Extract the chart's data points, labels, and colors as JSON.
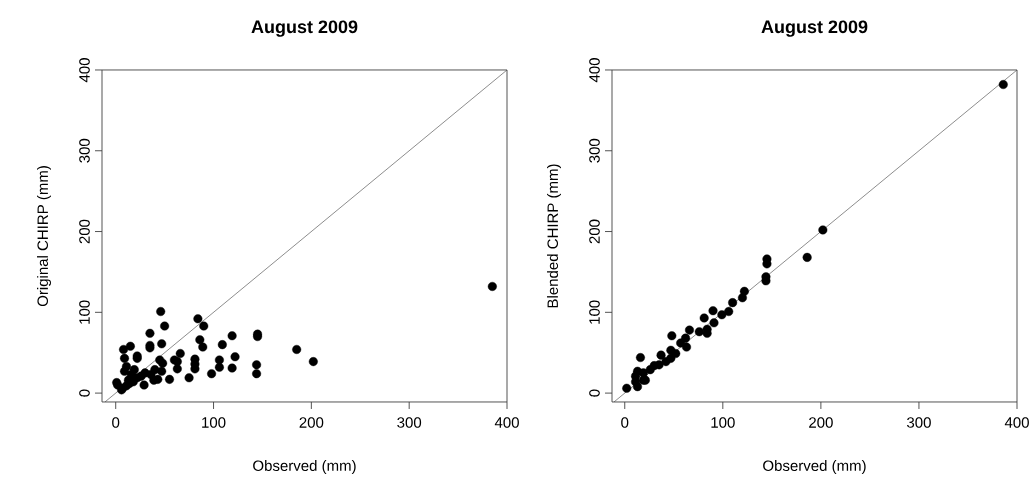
{
  "chart_data": [
    {
      "type": "scatter",
      "title": "August 2009",
      "xlabel": "Observed (mm)",
      "ylabel": "Original CHIRP (mm)",
      "xlim": [
        -14,
        400
      ],
      "ylim": [
        -11,
        400
      ],
      "xticks": [
        0,
        100,
        200,
        300,
        400
      ],
      "yticks": [
        0,
        100,
        200,
        300,
        400
      ],
      "series": [
        {
          "marker": "circle",
          "color": "#000000",
          "x": [
            385,
            46,
            84,
            50,
            90,
            35,
            119,
            145,
            145,
            86,
            47,
            109,
            35,
            35,
            15,
            89,
            8,
            185,
            22,
            122,
            66,
            60,
            63,
            202,
            81,
            81,
            81,
            106,
            106,
            45,
            48,
            9,
            22,
            119,
            144,
            144,
            63,
            98,
            75,
            55,
            29,
            40,
            36,
            43,
            30,
            26,
            19,
            16,
            13,
            11,
            9,
            14,
            7,
            2,
            1,
            6,
            11,
            22,
            18,
            39,
            47
          ],
          "values": [
            132,
            101,
            92,
            83,
            83,
            74,
            71,
            73,
            70,
            66,
            61,
            60,
            59,
            56,
            58,
            57,
            54,
            54,
            46,
            45,
            49,
            41,
            39,
            39,
            42,
            36,
            30,
            41,
            32,
            41,
            37,
            43,
            43,
            31,
            35,
            24,
            30,
            24,
            19,
            17,
            10,
            29,
            23,
            17,
            25,
            21,
            29,
            23,
            16,
            33,
            27,
            12,
            6,
            10,
            13,
            4,
            9,
            19,
            14,
            16,
            27
          ]
        },
        {
          "type": "line",
          "marker": "none",
          "color": "#404040",
          "x": [
            -11,
            400
          ],
          "values": [
            -11,
            400
          ]
        }
      ]
    },
    {
      "type": "scatter",
      "title": "August 2009",
      "xlabel": "Observed (mm)",
      "ylabel": "Blended CHIRP (mm)",
      "xlim": [
        -13,
        400
      ],
      "ylim": [
        -11,
        400
      ],
      "xticks": [
        0,
        100,
        200,
        300,
        400
      ],
      "yticks": [
        0,
        100,
        200,
        300,
        400
      ],
      "series": [
        {
          "marker": "circle",
          "color": "#000000",
          "x": [
            386,
            202,
            186,
            145,
            145,
            144,
            144,
            122,
            120,
            110,
            106,
            99,
            90,
            81,
            91,
            84,
            84,
            76,
            66,
            62,
            63,
            57,
            48,
            47,
            47,
            42,
            37,
            35,
            30,
            26,
            16,
            13,
            11,
            19,
            21,
            11,
            2,
            13,
            19,
            52
          ],
          "values": [
            382,
            202,
            168,
            166,
            160,
            144,
            139,
            126,
            118,
            112,
            101,
            97,
            102,
            93,
            87,
            79,
            74,
            76,
            78,
            68,
            57,
            62,
            71,
            53,
            43,
            39,
            47,
            35,
            34,
            29,
            44,
            27,
            21,
            25,
            16,
            14,
            6,
            8,
            16,
            49
          ]
        },
        {
          "type": "line",
          "marker": "none",
          "color": "#404040",
          "x": [
            -11,
            400
          ],
          "values": [
            -11,
            400
          ]
        }
      ]
    }
  ]
}
